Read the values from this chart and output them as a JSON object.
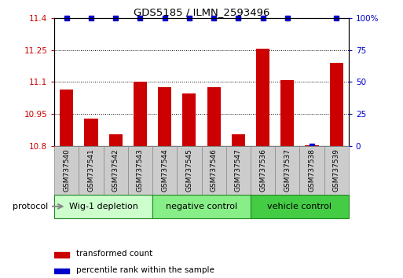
{
  "title": "GDS5185 / ILMN_2593496",
  "samples": [
    "GSM737540",
    "GSM737541",
    "GSM737542",
    "GSM737543",
    "GSM737544",
    "GSM737545",
    "GSM737546",
    "GSM737547",
    "GSM737536",
    "GSM737537",
    "GSM737538",
    "GSM737539"
  ],
  "bar_values": [
    11.065,
    10.93,
    10.855,
    11.1,
    11.075,
    11.045,
    11.075,
    10.855,
    11.255,
    11.11,
    10.802,
    11.19
  ],
  "percentile_values": [
    100,
    100,
    100,
    100,
    100,
    100,
    100,
    100,
    100,
    100,
    0,
    100
  ],
  "bar_color": "#cc0000",
  "percentile_color": "#0000cc",
  "ylim_left": [
    10.8,
    11.4
  ],
  "ylim_right": [
    0,
    100
  ],
  "yticks_left": [
    10.8,
    10.95,
    11.1,
    11.25,
    11.4
  ],
  "yticks_right": [
    0,
    25,
    50,
    75,
    100
  ],
  "ytick_labels_left": [
    "10.8",
    "10.95",
    "11.1",
    "11.25",
    "11.4"
  ],
  "ytick_labels_right": [
    "0",
    "25",
    "50",
    "75",
    "100%"
  ],
  "groups": [
    {
      "label": "Wig-1 depletion",
      "start": 0,
      "end": 3,
      "color": "#ccffcc"
    },
    {
      "label": "negative control",
      "start": 4,
      "end": 7,
      "color": "#88ee88"
    },
    {
      "label": "vehicle control",
      "start": 8,
      "end": 11,
      "color": "#44cc44"
    }
  ],
  "group_edge_color": "#228822",
  "protocol_label": "protocol",
  "legend_bar_label": "transformed count",
  "legend_dot_label": "percentile rank within the sample",
  "plot_bg_color": "#ffffff",
  "bar_width": 0.55,
  "tick_label_bg": "#cccccc",
  "tick_label_edge": "#888888"
}
